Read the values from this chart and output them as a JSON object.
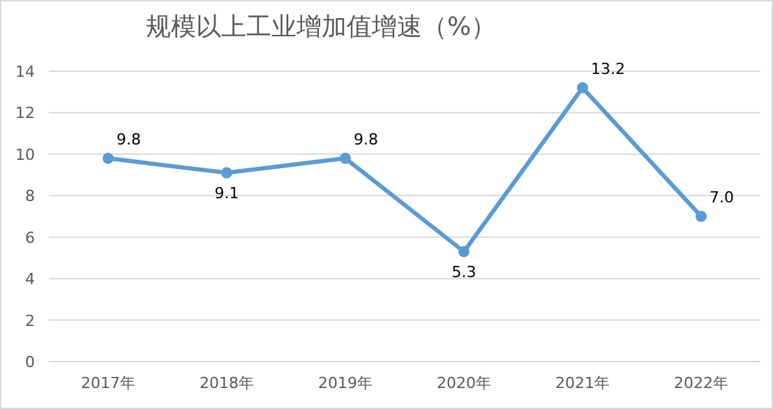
{
  "chart_data": {
    "type": "line",
    "title": "规模以上工业增加值增速（%）",
    "categories": [
      "2017年",
      "2018年",
      "2019年",
      "2020年",
      "2021年",
      "2022年"
    ],
    "values": [
      9.8,
      9.1,
      9.8,
      5.3,
      13.2,
      7.0
    ],
    "value_labels": [
      "9.8",
      "9.1",
      "9.8",
      "5.3",
      "13.2",
      "7.0"
    ],
    "color": "#5b9bd5",
    "ylim": [
      0,
      14
    ],
    "yticks": [
      0,
      2,
      4,
      6,
      8,
      10,
      12,
      14
    ],
    "grid": "y",
    "marker": "circle",
    "line_style": "solid"
  }
}
